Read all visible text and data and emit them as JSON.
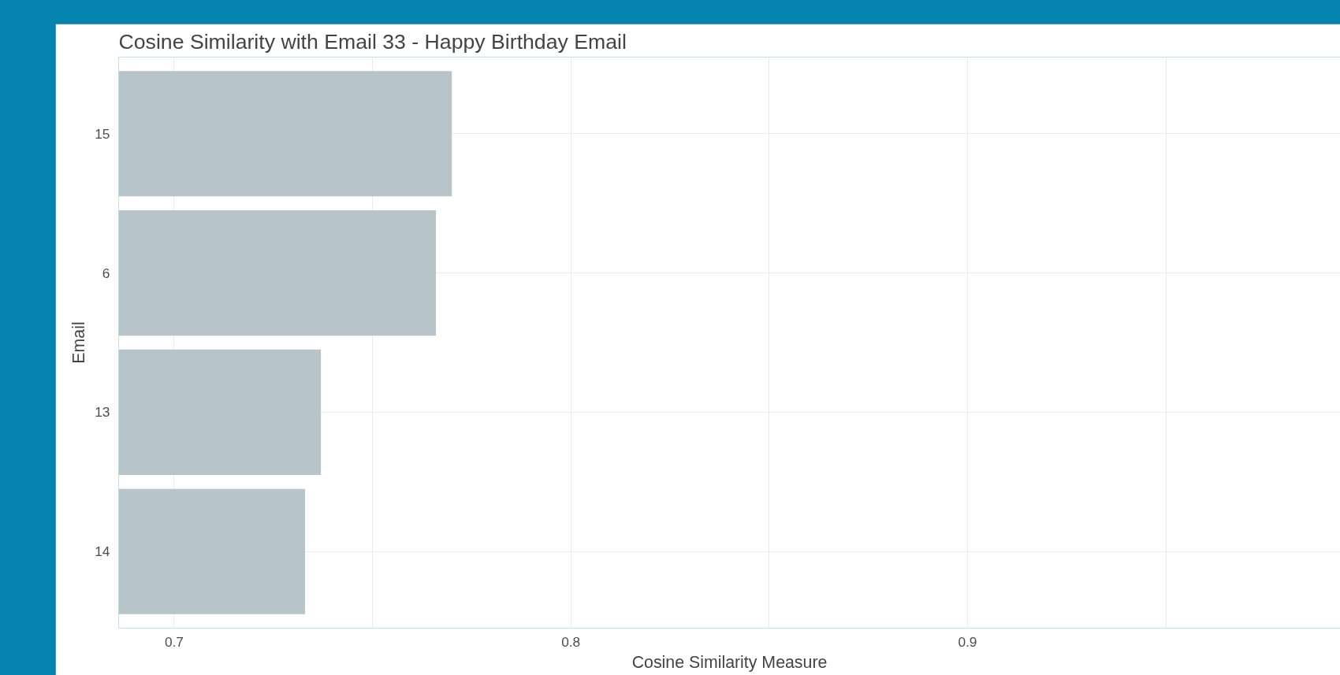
{
  "chart_data": {
    "type": "bar",
    "orientation": "horizontal",
    "title": "Cosine Similarity with Email 33 - Happy Birthday Email",
    "xlabel": "Cosine Similarity Measure",
    "ylabel": "Email",
    "categories": [
      "15",
      "6",
      "13",
      "14"
    ],
    "values": [
      0.77,
      0.766,
      0.737,
      0.733
    ],
    "color": "#b7c4c9",
    "xlim": [
      0.686,
      0.994
    ],
    "xticks": [
      0.7,
      0.8,
      0.9
    ],
    "grid": true
  }
}
